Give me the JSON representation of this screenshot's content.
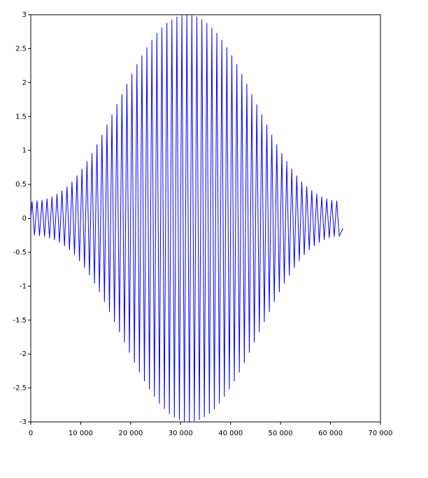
{
  "chart_data": {
    "type": "line",
    "color": "#0000ff",
    "xlim": [
      0,
      70000
    ],
    "ylim": [
      -3,
      3
    ],
    "xticks": [
      0,
      {
        "value": 10000,
        "label": "10 000"
      },
      {
        "value": 20000,
        "label": "20 000"
      },
      {
        "value": 30000,
        "label": "30 000"
      },
      {
        "value": 40000,
        "label": "40 000"
      },
      {
        "value": 50000,
        "label": "50 000"
      },
      {
        "value": 60000,
        "label": "60 000"
      },
      {
        "value": 70000,
        "label": "70 000"
      }
    ],
    "yticks": [
      -3,
      -2.5,
      -2,
      -1.5,
      -1,
      -0.5,
      0,
      0.5,
      1,
      1.5,
      2,
      2.5,
      3
    ],
    "x": [
      0,
      250,
      750,
      1250,
      1750,
      2250,
      2750,
      3250,
      3750,
      4250,
      4750,
      5250,
      5750,
      6250,
      6750,
      7250,
      7750,
      8250,
      8750,
      9250,
      9750,
      10250,
      10750,
      11250,
      11750,
      12250,
      12750,
      13250,
      13750,
      14250,
      14750,
      15250,
      15750,
      16250,
      16750,
      17250,
      17750,
      18250,
      18750,
      19250,
      19750,
      20250,
      20750,
      21250,
      21750,
      22250,
      22750,
      23250,
      23750,
      24250,
      24750,
      25250,
      25750,
      26250,
      26750,
      27250,
      27750,
      28250,
      28750,
      29250,
      29750,
      30250,
      30750,
      31250,
      31750,
      32250,
      32750,
      33250,
      33750,
      34250,
      34750,
      35250,
      35750,
      36250,
      36750,
      37250,
      37750,
      38250,
      38750,
      39250,
      39750,
      40250,
      40750,
      41250,
      41750,
      42250,
      42750,
      43250,
      43750,
      44250,
      44750,
      45250,
      45750,
      46250,
      46750,
      47250,
      47750,
      48250,
      48750,
      49250,
      49750,
      50250,
      50750,
      51250,
      51750,
      52250,
      52750,
      53250,
      53750,
      54250,
      54750,
      55250,
      55750,
      56250,
      56750,
      57250,
      57750,
      58250,
      58750,
      59250,
      59750,
      60250,
      60750,
      61250,
      61750,
      62500
    ],
    "values": [
      0,
      0.25,
      -0.25,
      0.26,
      -0.26,
      0.27,
      -0.27,
      0.29,
      -0.29,
      0.32,
      -0.32,
      0.36,
      -0.36,
      0.41,
      -0.41,
      0.47,
      -0.47,
      0.54,
      -0.54,
      0.63,
      -0.63,
      0.73,
      -0.73,
      0.84,
      -0.84,
      0.96,
      -0.96,
      1.09,
      -1.09,
      1.23,
      -1.23,
      1.38,
      -1.38,
      1.53,
      -1.53,
      1.68,
      -1.68,
      1.83,
      -1.83,
      1.98,
      -1.98,
      2.13,
      -2.13,
      2.27,
      -2.27,
      2.4,
      -2.4,
      2.52,
      -2.52,
      2.63,
      -2.63,
      2.73,
      -2.73,
      2.81,
      -2.81,
      2.88,
      -2.88,
      2.93,
      -2.93,
      2.97,
      -2.97,
      2.99,
      -2.99,
      3,
      -3,
      2.99,
      -2.99,
      2.97,
      -2.97,
      2.93,
      -2.93,
      2.88,
      -2.88,
      2.81,
      -2.81,
      2.73,
      -2.73,
      2.63,
      -2.63,
      2.52,
      -2.52,
      2.4,
      -2.4,
      2.27,
      -2.27,
      2.13,
      -2.13,
      1.98,
      -1.98,
      1.83,
      -1.83,
      1.68,
      -1.68,
      1.53,
      -1.53,
      1.38,
      -1.38,
      1.23,
      -1.23,
      1.09,
      -1.09,
      0.96,
      -0.96,
      0.84,
      -0.84,
      0.73,
      -0.73,
      0.63,
      -0.63,
      0.54,
      -0.54,
      0.47,
      -0.47,
      0.41,
      -0.41,
      0.36,
      -0.36,
      0.32,
      -0.32,
      0.29,
      -0.29,
      0.27,
      -0.27,
      0.26,
      -0.26,
      -0.15
    ]
  }
}
